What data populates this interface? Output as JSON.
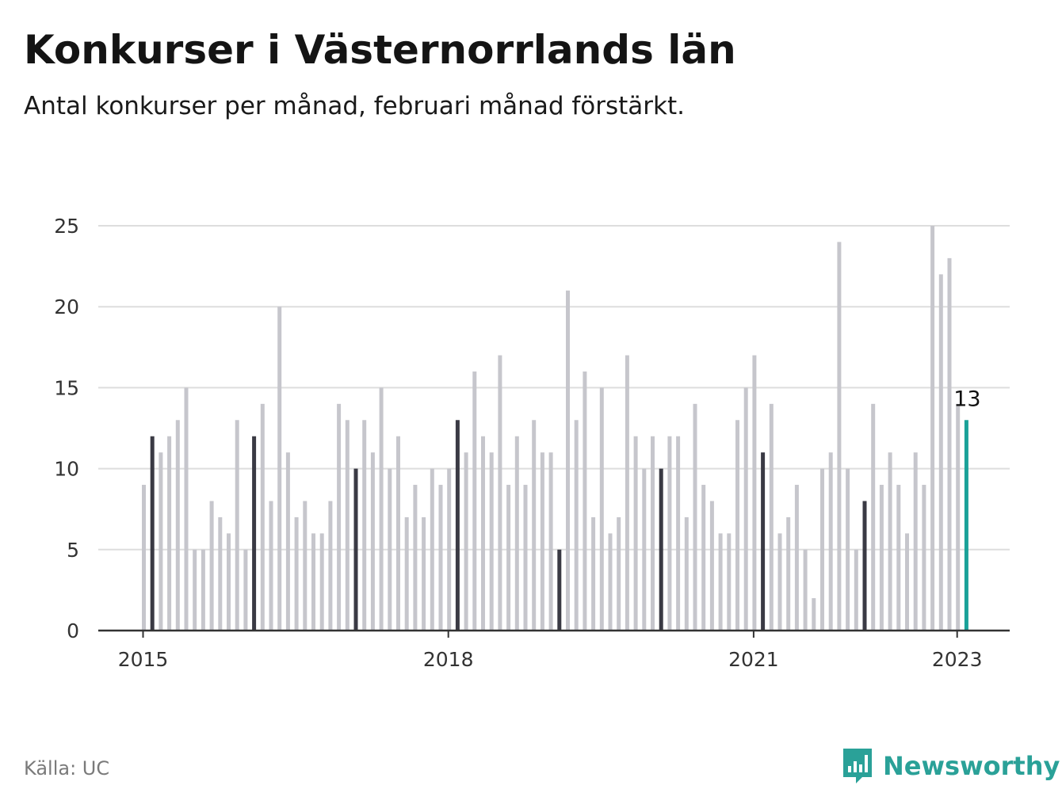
{
  "title": "Konkurser i Västernorrlands län",
  "subtitle": "Antal konkurser per månad, februari månad förstärkt.",
  "source": "Källa: UC",
  "brand": "Newsworthy",
  "colors": {
    "bar": "#c6c6cc",
    "highlight": "#3a3a44",
    "latest": "#1aa198",
    "grid": "#dddddd",
    "axis": "#333333"
  },
  "chart_data": {
    "type": "bar",
    "ylim": [
      0,
      25
    ],
    "yticks": [
      0,
      5,
      10,
      15,
      20,
      25
    ],
    "xticks": [
      {
        "label": "2015",
        "index": 0
      },
      {
        "label": "2018",
        "index": 36
      },
      {
        "label": "2021",
        "index": 72
      },
      {
        "label": "2023",
        "index": 96
      }
    ],
    "start": "2015-01",
    "values": [
      9,
      12,
      11,
      12,
      13,
      15,
      5,
      5,
      8,
      7,
      6,
      13,
      5,
      12,
      14,
      8,
      20,
      11,
      7,
      8,
      6,
      6,
      8,
      14,
      13,
      10,
      13,
      11,
      15,
      10,
      12,
      7,
      9,
      7,
      10,
      9,
      10,
      13,
      11,
      16,
      12,
      11,
      17,
      9,
      12,
      9,
      13,
      11,
      11,
      5,
      21,
      13,
      16,
      7,
      15,
      6,
      7,
      17,
      12,
      10,
      12,
      10,
      12,
      12,
      7,
      14,
      9,
      8,
      6,
      6,
      13,
      15,
      17,
      11,
      14,
      6,
      7,
      9,
      5,
      2,
      10,
      11,
      24,
      10,
      5,
      8,
      14,
      9,
      11,
      9,
      6,
      11,
      9,
      25,
      22,
      23,
      14,
      13
    ],
    "highlight_note": "februari",
    "latest_label": "13"
  }
}
